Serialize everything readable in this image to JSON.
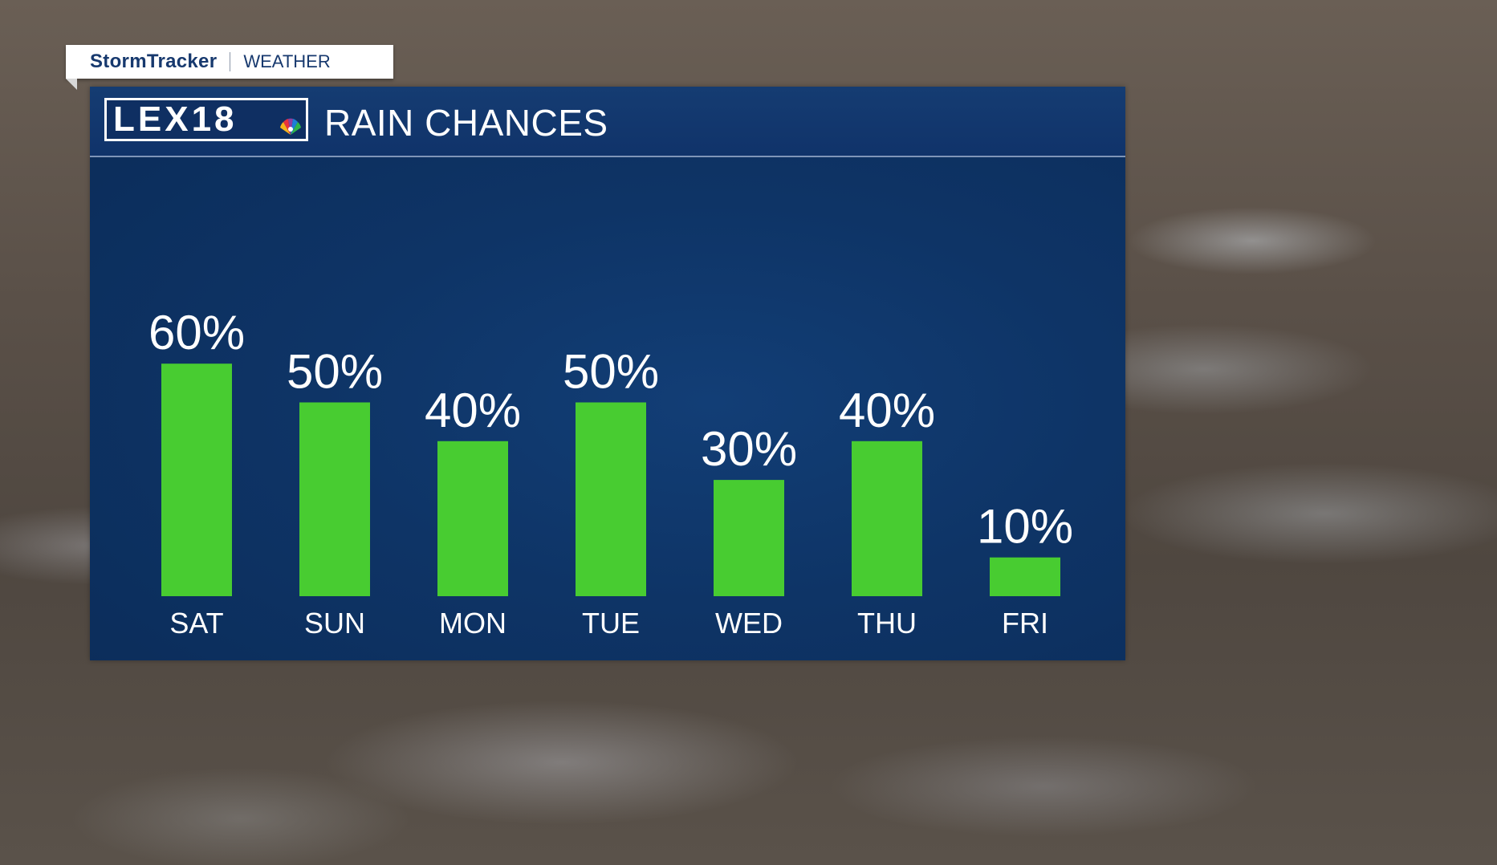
{
  "brand": {
    "name": "StormTracker",
    "section": "WEATHER"
  },
  "station_logo": {
    "text": "LEX18",
    "network_icon": "peacock-icon"
  },
  "panel": {
    "title": "RAIN CHANCES"
  },
  "colors": {
    "bar": "#48cc31",
    "panel": "#0e3466",
    "text": "#ffffff"
  },
  "chart_data": {
    "type": "bar",
    "title": "RAIN CHANCES",
    "categories": [
      "SAT",
      "SUN",
      "MON",
      "TUE",
      "WED",
      "THU",
      "FRI"
    ],
    "values": [
      60,
      50,
      40,
      50,
      30,
      40,
      10
    ],
    "value_labels": [
      "60%",
      "50%",
      "40%",
      "50%",
      "30%",
      "40%",
      "10%"
    ],
    "unit": "%",
    "ylim": [
      0,
      100
    ],
    "grid": false,
    "legend": "none"
  }
}
